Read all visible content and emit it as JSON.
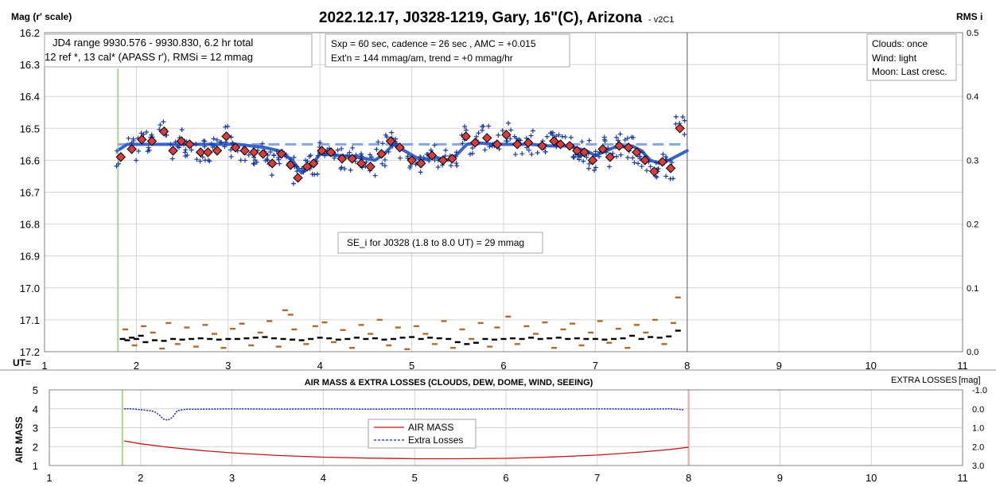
{
  "title": "2022.12.17, J0328-1219, Gary, 16\"(C), Arizona",
  "title_suffix": "- v2C1",
  "colors": {
    "lc_line": "#3c64c8",
    "lc_marker": "#d83c3c",
    "plus": "#1a3ca0",
    "airmass": "#c01818",
    "extra_losses": "#1a2896",
    "start_line": "#a8d890",
    "end_line_top": "#909090",
    "end_line_bottom": "#f0a0a8",
    "rms_brown": "#b06a30",
    "rms_black": "#000000"
  },
  "chart_data": [
    {
      "type": "scatter",
      "ylabel_left": "Mag (r' scale)",
      "ylabel_right": "RMS i",
      "xlabel": "UT=",
      "xlim": [
        1,
        11
      ],
      "ylim": [
        17.2,
        16.2
      ],
      "y2lim": [
        0.0,
        0.5
      ],
      "xticks": [
        1,
        2,
        3,
        4,
        5,
        6,
        7,
        8,
        9,
        10,
        11
      ],
      "yticks": [
        "16.2",
        "16.3",
        "16.4",
        "16.5",
        "16.6",
        "16.7",
        "16.8",
        "16.9",
        "17.0",
        "17.1",
        "17.2"
      ],
      "y2ticks": [
        "0.5",
        "0.4",
        "0.3",
        "0.2",
        "0.1",
        "0.0"
      ],
      "grid": true,
      "session_start_ut": 1.8,
      "session_end_ut": 8.0,
      "info_box_left": [
        "JD4 range 9930.576 - 9930.830, 6.2 hr total",
        "12 ref *, 13 cal*  (APASS r'), RMSi = 12 mmag"
      ],
      "info_box_middle": [
        "Sxp = 60 sec, cadence = 26 sec , AMC = +0.015",
        "Ext'n = 144 mmag/am, trend = +0 mmag/hr"
      ],
      "info_box_right": [
        "Clouds: once",
        "Wind:  light",
        "Moon: Last cresc."
      ],
      "se_box": "SE_i for J0328 (1.8 to 8.0 UT) = 29 mmag",
      "reference_level": 16.55,
      "binned_points": {
        "x": [
          1.83,
          1.95,
          2.06,
          2.17,
          2.3,
          2.4,
          2.49,
          2.58,
          2.7,
          2.78,
          2.88,
          2.98,
          3.08,
          3.18,
          3.28,
          3.38,
          3.48,
          3.58,
          3.68,
          3.76,
          3.86,
          3.93,
          4.02,
          4.12,
          4.24,
          4.35,
          4.45,
          4.55,
          4.67,
          4.77,
          4.87,
          5.0,
          5.1,
          5.22,
          5.34,
          5.44,
          5.59,
          5.69,
          5.82,
          5.93,
          6.03,
          6.15,
          6.27,
          6.42,
          6.55,
          6.62,
          6.72,
          6.8,
          6.88,
          6.97,
          7.08,
          7.16,
          7.26,
          7.36,
          7.45,
          7.54,
          7.64,
          7.73,
          7.82,
          7.92
        ],
        "y": [
          16.59,
          16.565,
          16.535,
          16.54,
          16.51,
          16.57,
          16.54,
          16.55,
          16.575,
          16.575,
          16.57,
          16.525,
          16.56,
          16.57,
          16.575,
          16.58,
          16.61,
          16.58,
          16.615,
          16.655,
          16.62,
          16.61,
          16.57,
          16.575,
          16.595,
          16.595,
          16.61,
          16.62,
          16.58,
          16.54,
          16.56,
          16.6,
          16.61,
          16.585,
          16.6,
          16.595,
          16.525,
          16.545,
          16.53,
          16.55,
          16.52,
          16.55,
          16.545,
          16.555,
          16.54,
          16.55,
          16.555,
          16.57,
          16.575,
          16.6,
          16.565,
          16.59,
          16.555,
          16.56,
          16.575,
          16.6,
          16.635,
          16.605,
          16.625,
          16.5
        ]
      },
      "trend_line": {
        "x": [
          1.82,
          1.9,
          2.0,
          2.2,
          2.5,
          2.8,
          3.1,
          3.4,
          3.55,
          3.7,
          3.8,
          3.9,
          4.0,
          4.2,
          4.4,
          4.6,
          4.7,
          4.8,
          4.95,
          5.1,
          5.25,
          5.4,
          5.5,
          5.6,
          5.7,
          5.9,
          6.1,
          6.3,
          6.5,
          6.7,
          6.9,
          7.0,
          7.2,
          7.4,
          7.5,
          7.6,
          7.7,
          7.8,
          7.9,
          8.0
        ],
        "y": [
          16.565,
          16.55,
          16.55,
          16.55,
          16.55,
          16.55,
          16.55,
          16.56,
          16.57,
          16.6,
          16.64,
          16.62,
          16.58,
          16.585,
          16.59,
          16.6,
          16.58,
          16.55,
          16.575,
          16.6,
          16.59,
          16.6,
          16.58,
          16.55,
          16.545,
          16.55,
          16.55,
          16.55,
          16.555,
          16.555,
          16.57,
          16.585,
          16.56,
          16.555,
          16.57,
          16.6,
          16.61,
          16.6,
          16.585,
          16.57
        ]
      },
      "rms_series": [
        {
          "name": "",
          "color": "rms_black",
          "x": [
            1.85,
            1.9,
            1.95,
            2.0,
            2.05,
            2.1,
            2.2,
            2.3,
            2.4,
            2.5,
            2.6,
            2.7,
            2.8,
            2.9,
            3.0,
            3.1,
            3.2,
            3.3,
            3.4,
            3.5,
            3.6,
            3.7,
            3.8,
            3.9,
            4.0,
            4.1,
            4.2,
            4.3,
            4.4,
            4.5,
            4.6,
            4.7,
            4.8,
            4.9,
            5.0,
            5.1,
            5.2,
            5.3,
            5.4,
            5.5,
            5.6,
            5.7,
            5.8,
            5.9,
            6.0,
            6.1,
            6.2,
            6.3,
            6.4,
            6.5,
            6.6,
            6.7,
            6.8,
            6.9,
            7.0,
            7.1,
            7.2,
            7.3,
            7.4,
            7.5,
            7.6,
            7.7,
            7.8,
            7.9
          ],
          "y": [
            0.02,
            0.018,
            0.022,
            0.02,
            0.025,
            0.015,
            0.018,
            0.017,
            0.02,
            0.019,
            0.02,
            0.021,
            0.02,
            0.019,
            0.02,
            0.02,
            0.021,
            0.022,
            0.023,
            0.021,
            0.02,
            0.019,
            0.018,
            0.02,
            0.022,
            0.021,
            0.019,
            0.02,
            0.022,
            0.02,
            0.021,
            0.019,
            0.02,
            0.022,
            0.023,
            0.02,
            0.022,
            0.021,
            0.02,
            0.015,
            0.012,
            0.014,
            0.02,
            0.019,
            0.02,
            0.021,
            0.02,
            0.022,
            0.02,
            0.021,
            0.022,
            0.02,
            0.021,
            0.02,
            0.02,
            0.019,
            0.02,
            0.021,
            0.025,
            0.02,
            0.023,
            0.022,
            0.024,
            0.033
          ]
        },
        {
          "name": "",
          "color": "rms_brown",
          "x": [
            1.88,
            1.98,
            2.08,
            2.18,
            2.28,
            2.35,
            2.45,
            2.55,
            2.65,
            2.75,
            2.85,
            2.95,
            3.05,
            3.15,
            3.25,
            3.35,
            3.45,
            3.55,
            3.62,
            3.68,
            3.72,
            3.85,
            3.95,
            4.05,
            4.15,
            4.25,
            4.35,
            4.45,
            4.55,
            4.65,
            4.75,
            4.85,
            4.95,
            5.05,
            5.15,
            5.25,
            5.35,
            5.45,
            5.55,
            5.65,
            5.75,
            5.85,
            5.93,
            6.05,
            6.15,
            6.25,
            6.35,
            6.45,
            6.55,
            6.65,
            6.75,
            6.85,
            6.95,
            7.05,
            7.15,
            7.25,
            7.35,
            7.45,
            7.55,
            7.65,
            7.75,
            7.85,
            7.9
          ],
          "y": [
            0.035,
            0.01,
            0.04,
            0.03,
            0.005,
            0.045,
            0.012,
            0.038,
            0.008,
            0.042,
            0.028,
            0.006,
            0.036,
            0.044,
            0.01,
            0.03,
            0.048,
            0.008,
            0.065,
            0.058,
            0.035,
            0.012,
            0.04,
            0.046,
            0.015,
            0.034,
            0.006,
            0.042,
            0.028,
            0.05,
            0.01,
            0.038,
            0.004,
            0.04,
            0.028,
            0.012,
            0.048,
            0.006,
            0.035,
            0.02,
            0.045,
            0.008,
            0.038,
            0.055,
            0.012,
            0.04,
            0.028,
            0.046,
            0.006,
            0.035,
            0.044,
            0.01,
            0.03,
            0.048,
            0.014,
            0.036,
            0.006,
            0.042,
            0.03,
            0.05,
            0.012,
            0.045,
            0.085
          ]
        }
      ]
    },
    {
      "type": "line",
      "title": "AIR MASS & EXTRA LOSSES (CLOUDS, DEW, DOME, WIND, SEEING)",
      "ylabel_left": "AIR MASS",
      "ylabel_right": "EXTRA LOSSES",
      "ylabel_right_unit": "[mag]",
      "xlim": [
        1,
        11
      ],
      "ylim": [
        1,
        5
      ],
      "y2lim": [
        3.0,
        -1.0
      ],
      "xticks": [
        1,
        2,
        3,
        4,
        5,
        6,
        7,
        8,
        9,
        10,
        11
      ],
      "yticks": [
        "1",
        "2",
        "3",
        "4",
        "5"
      ],
      "y2ticks": [
        "-1.0",
        "0.0",
        "1.0",
        "2.0",
        "3.0"
      ],
      "legend": [
        "AIR MASS",
        "Extra Losses"
      ],
      "legend_position": "center",
      "series": [
        {
          "name": "AIR MASS",
          "color": "airmass",
          "x": [
            1.82,
            2.0,
            2.3,
            2.7,
            3.0,
            3.5,
            4.0,
            4.5,
            5.0,
            5.5,
            6.0,
            6.5,
            7.0,
            7.5,
            7.8,
            8.0
          ],
          "y": [
            2.3,
            2.15,
            1.97,
            1.78,
            1.67,
            1.53,
            1.44,
            1.39,
            1.36,
            1.36,
            1.38,
            1.45,
            1.55,
            1.72,
            1.85,
            1.97
          ]
        },
        {
          "name": "Extra Losses",
          "color": "extra_losses",
          "x": [
            1.82,
            1.9,
            2.0,
            2.1,
            2.15,
            2.2,
            2.25,
            2.3,
            2.35,
            2.4,
            2.5,
            2.7,
            3.0,
            3.5,
            4.0,
            4.5,
            5.0,
            5.5,
            6.0,
            6.5,
            7.0,
            7.5,
            7.8,
            7.95
          ],
          "y": [
            0.0,
            0.0,
            0.05,
            0.1,
            0.15,
            0.3,
            0.55,
            0.6,
            0.45,
            0.1,
            0.02,
            0.02,
            0.0,
            0.02,
            0.0,
            0.02,
            0.0,
            0.02,
            0.0,
            0.02,
            0.0,
            0.02,
            0.0,
            0.05
          ]
        }
      ]
    }
  ]
}
